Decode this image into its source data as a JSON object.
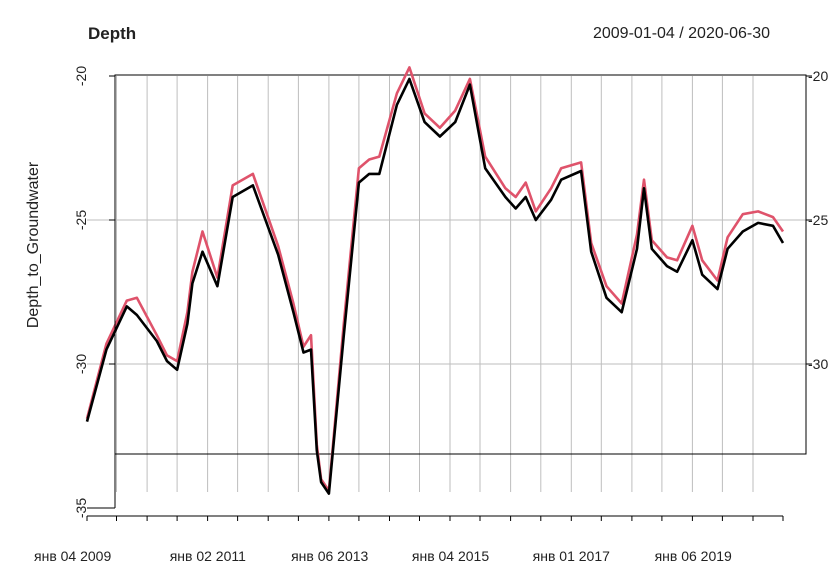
{
  "chart_data": {
    "type": "line",
    "title": "Depth",
    "date_range": "2009-01-04 / 2020-06-30",
    "ylabel": "Depth_to_Groundwater",
    "xlabel": "",
    "ylim": [
      -35,
      -20
    ],
    "yticks_left": [
      "-20",
      "-25",
      "-30",
      "-35"
    ],
    "yticks_right": [
      "-20",
      "-25",
      "-30"
    ],
    "x_ticks": [
      {
        "label": "янв 04 2009",
        "date": "2009-01-04"
      },
      {
        "label": "янв 02 2011",
        "date": "2011-01-02"
      },
      {
        "label": "янв 06 2013",
        "date": "2013-01-06"
      },
      {
        "label": "янв 04 2015",
        "date": "2015-01-04"
      },
      {
        "label": "янв 01 2017",
        "date": "2017-01-01"
      },
      {
        "label": "янв 06 2019",
        "date": "2019-01-06"
      }
    ],
    "grid": true,
    "colors": {
      "series1": "#000000",
      "series2": "#df536b",
      "grid": "#bebebe"
    },
    "series": [
      {
        "color": "#000000",
        "x": [
          "2009-01-04",
          "2009-05-01",
          "2009-09-01",
          "2009-11-01",
          "2010-03-01",
          "2010-05-01",
          "2010-07-01",
          "2010-09-01",
          "2010-10-01",
          "2010-12-01",
          "2011-03-01",
          "2011-06-01",
          "2011-10-01",
          "2012-03-01",
          "2012-06-01",
          "2012-08-01",
          "2012-09-15",
          "2012-10-20",
          "2012-11-15",
          "2013-01-01",
          "2013-04-01",
          "2013-07-01",
          "2013-09-01",
          "2013-11-01",
          "2014-02-15",
          "2014-05-01",
          "2014-08-01",
          "2014-11-01",
          "2015-02-01",
          "2015-05-01",
          "2015-08-01",
          "2015-12-01",
          "2016-02-01",
          "2016-04-01",
          "2016-06-01",
          "2016-09-01",
          "2016-11-01",
          "2017-03-01",
          "2017-05-01",
          "2017-08-01",
          "2017-11-01",
          "2018-02-01",
          "2018-03-15",
          "2018-05-01",
          "2018-08-01",
          "2018-10-01",
          "2019-01-01",
          "2019-03-01",
          "2019-06-01",
          "2019-08-01",
          "2019-11-01",
          "2020-02-01",
          "2020-05-01",
          "2020-06-30"
        ],
        "values": [
          -32.0,
          -29.5,
          -28.0,
          -28.3,
          -29.2,
          -29.9,
          -30.2,
          -28.6,
          -27.2,
          -26.1,
          -27.3,
          -24.2,
          -23.8,
          -26.2,
          -28.2,
          -29.6,
          -29.5,
          -33.0,
          -34.1,
          -34.5,
          -29.0,
          -23.7,
          -23.4,
          -23.4,
          -21.0,
          -20.1,
          -21.6,
          -22.1,
          -21.6,
          -20.3,
          -23.2,
          -24.2,
          -24.6,
          -24.2,
          -25.0,
          -24.3,
          -23.6,
          -23.3,
          -26.1,
          -27.7,
          -28.2,
          -26.0,
          -23.9,
          -26.0,
          -26.6,
          -26.8,
          -25.7,
          -26.9,
          -27.4,
          -26.0,
          -25.4,
          -25.1,
          -25.2,
          -25.8
        ]
      },
      {
        "color": "#df536b",
        "x": [
          "2009-01-04",
          "2009-05-01",
          "2009-09-01",
          "2009-11-01",
          "2010-03-01",
          "2010-05-01",
          "2010-07-01",
          "2010-09-01",
          "2010-10-01",
          "2010-12-01",
          "2011-03-01",
          "2011-06-01",
          "2011-10-01",
          "2012-03-01",
          "2012-06-01",
          "2012-08-01",
          "2012-09-15",
          "2012-10-20",
          "2012-11-15",
          "2013-01-01",
          "2013-04-01",
          "2013-07-01",
          "2013-09-01",
          "2013-11-01",
          "2014-02-15",
          "2014-05-01",
          "2014-08-01",
          "2014-11-01",
          "2015-02-01",
          "2015-05-01",
          "2015-08-01",
          "2015-12-01",
          "2016-02-01",
          "2016-04-01",
          "2016-06-01",
          "2016-09-01",
          "2016-11-01",
          "2017-03-01",
          "2017-05-01",
          "2017-08-01",
          "2017-11-01",
          "2018-02-01",
          "2018-03-15",
          "2018-05-01",
          "2018-08-01",
          "2018-10-01",
          "2019-01-01",
          "2019-03-01",
          "2019-06-01",
          "2019-08-01",
          "2019-11-01",
          "2020-02-01",
          "2020-05-01",
          "2020-06-30"
        ],
        "values": [
          -31.9,
          -29.3,
          -27.8,
          -27.7,
          -29.0,
          -29.7,
          -29.9,
          -28.2,
          -26.8,
          -25.4,
          -27.0,
          -23.8,
          -23.4,
          -25.9,
          -27.9,
          -29.4,
          -29.0,
          -32.8,
          -34.0,
          -34.4,
          -28.6,
          -23.2,
          -22.9,
          -22.8,
          -20.6,
          -19.7,
          -21.3,
          -21.8,
          -21.2,
          -20.1,
          -22.8,
          -23.9,
          -24.2,
          -23.7,
          -24.7,
          -23.9,
          -23.2,
          -23.0,
          -25.8,
          -27.3,
          -27.9,
          -25.5,
          -23.6,
          -25.7,
          -26.3,
          -26.4,
          -25.2,
          -26.4,
          -27.1,
          -25.6,
          -24.8,
          -24.7,
          -24.9,
          -25.4
        ]
      }
    ]
  }
}
